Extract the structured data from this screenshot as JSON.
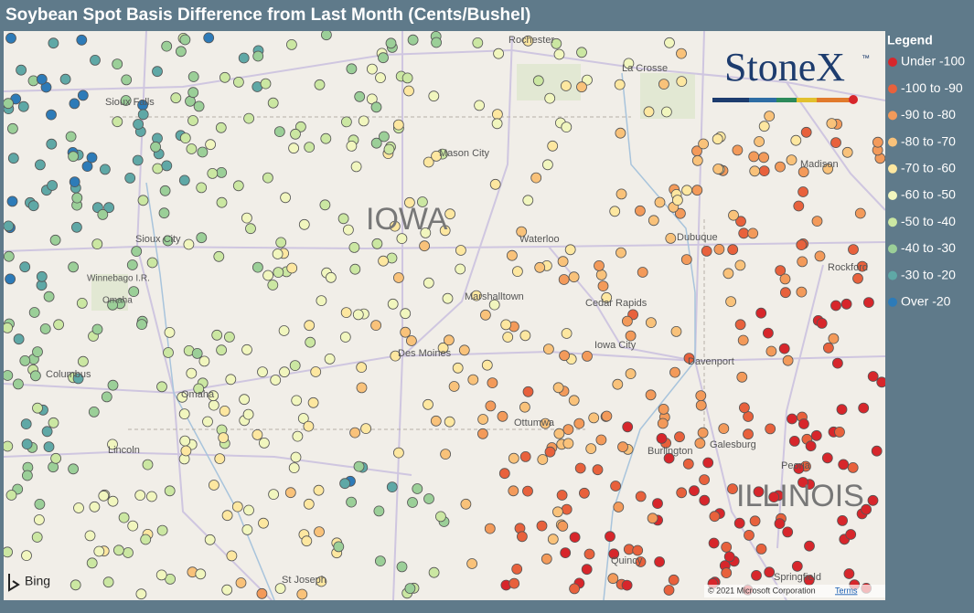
{
  "header": {
    "title": "Soybean Spot Basis Difference from Last Month (Cents/Bushel)"
  },
  "legend": {
    "title": "Legend",
    "items": [
      {
        "label": "Under -100",
        "color": "#d7262b"
      },
      {
        "label": "-100 to -90",
        "color": "#e8613c"
      },
      {
        "label": "-90 to -80",
        "color": "#f39a5a"
      },
      {
        "label": "-80 to -70",
        "color": "#f9c27a"
      },
      {
        "label": "-70 to -60",
        "color": "#fde7a0"
      },
      {
        "label": "-60 to -50",
        "color": "#f1f6be"
      },
      {
        "label": "-50 to -40",
        "color": "#cbe7a2"
      },
      {
        "label": "-40 to -30",
        "color": "#9bcf98"
      },
      {
        "label": "-30 to -20",
        "color": "#5fa8a6"
      },
      {
        "label": "Over -20",
        "color": "#2d7bb8"
      }
    ]
  },
  "logo": {
    "text": "StoneX",
    "mark": "™"
  },
  "places": [
    {
      "label": "Rochester"
    },
    {
      "label": "La Crosse"
    },
    {
      "label": "Madison"
    },
    {
      "label": "Sioux Falls"
    },
    {
      "label": "Mason City"
    },
    {
      "label": "IOWA"
    },
    {
      "label": "Waterloo"
    },
    {
      "label": "Dubuque"
    },
    {
      "label": "Rockford"
    },
    {
      "label": "Sioux City"
    },
    {
      "label": "Winnebago I.R."
    },
    {
      "label": "Omaha"
    },
    {
      "label": "Marshalltown"
    },
    {
      "label": "Cedar Rapids"
    },
    {
      "label": "Iowa City"
    },
    {
      "label": "Des Moines"
    },
    {
      "label": "Davenport"
    },
    {
      "label": "Columbus"
    },
    {
      "label": "Omaha"
    },
    {
      "label": "Ottumwa"
    },
    {
      "label": "Lincoln"
    },
    {
      "label": "Galesburg"
    },
    {
      "label": "Burlington"
    },
    {
      "label": "Peoria"
    },
    {
      "label": "ILLINOIS"
    },
    {
      "label": "Quincy"
    },
    {
      "label": "St Joseph"
    },
    {
      "label": "Springfield"
    }
  ],
  "attribution": {
    "bing": "Bing",
    "copyright": "© 2021 Microsoft Corporation",
    "terms": "Terms"
  }
}
